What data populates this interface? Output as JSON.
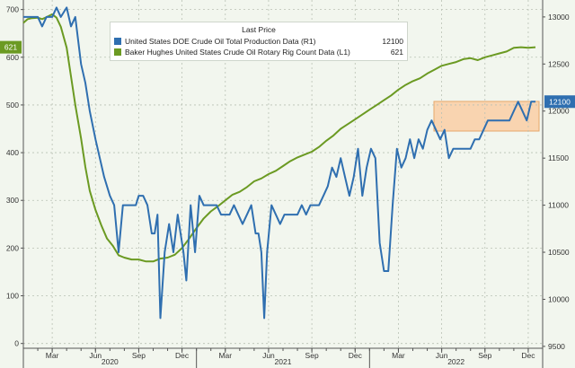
{
  "chart_data": {
    "type": "line",
    "x_axis": {
      "month_ticks": [
        "Mar",
        "Jun",
        "Sep",
        "Dec",
        "Mar",
        "Jun",
        "Sep",
        "Dec",
        "Mar",
        "Jun",
        "Sep",
        "Dec"
      ],
      "year_labels": [
        "2020",
        "2021",
        "2022"
      ],
      "range": [
        "2019-12",
        "2022-12"
      ]
    },
    "left_axis": {
      "label": "L1",
      "range": [
        -10,
        720
      ],
      "ticks": [
        0,
        100,
        200,
        300,
        400,
        500,
        600,
        700
      ]
    },
    "right_axis": {
      "label": "R1",
      "range": [
        9480,
        13180
      ],
      "ticks": [
        9500,
        10000,
        10500,
        11000,
        11500,
        12000,
        12500,
        13000
      ]
    },
    "legend": {
      "title": "Last Price",
      "entries": [
        {
          "name": "United States DOE Crude Oil Total Production Data",
          "axis_tag": "(R1)",
          "last": "12100",
          "color": "#2f6fb0"
        },
        {
          "name": "Baker Hughes United States Crude Oil Rotary Rig Count Data",
          "axis_tag": "(L1)",
          "last": "621",
          "color": "#6b9a22"
        }
      ]
    },
    "series": [
      {
        "name": "Baker Hughes United States Crude Oil Rotary Rig Count Data",
        "axis": "left",
        "color": "#6b9a22",
        "last_label": "621",
        "points": [
          [
            0.0,
            672
          ],
          [
            0.3,
            680
          ],
          [
            0.6,
            682
          ],
          [
            1.0,
            683
          ],
          [
            1.3,
            680
          ],
          [
            1.6,
            684
          ],
          [
            2.0,
            690
          ],
          [
            2.3,
            683
          ],
          [
            2.6,
            664
          ],
          [
            3.0,
            620
          ],
          [
            3.3,
            560
          ],
          [
            3.6,
            500
          ],
          [
            4.0,
            430
          ],
          [
            4.3,
            370
          ],
          [
            4.6,
            320
          ],
          [
            5.0,
            280
          ],
          [
            5.4,
            248
          ],
          [
            5.8,
            220
          ],
          [
            6.2,
            205
          ],
          [
            6.6,
            185
          ],
          [
            7.0,
            180
          ],
          [
            7.5,
            176
          ],
          [
            8.0,
            176
          ],
          [
            8.5,
            172
          ],
          [
            9.0,
            172
          ],
          [
            9.5,
            178
          ],
          [
            10.0,
            180
          ],
          [
            10.5,
            186
          ],
          [
            11.0,
            200
          ],
          [
            11.5,
            220
          ],
          [
            12.0,
            242
          ],
          [
            12.5,
            262
          ],
          [
            13.0,
            277
          ],
          [
            13.5,
            288
          ],
          [
            14.0,
            300
          ],
          [
            14.5,
            312
          ],
          [
            15.0,
            318
          ],
          [
            15.5,
            328
          ],
          [
            16.0,
            340
          ],
          [
            16.5,
            346
          ],
          [
            17.0,
            355
          ],
          [
            17.5,
            362
          ],
          [
            18.0,
            372
          ],
          [
            18.5,
            382
          ],
          [
            19.0,
            390
          ],
          [
            19.5,
            396
          ],
          [
            20.0,
            402
          ],
          [
            20.5,
            412
          ],
          [
            21.0,
            425
          ],
          [
            21.5,
            436
          ],
          [
            22.0,
            450
          ],
          [
            22.5,
            460
          ],
          [
            23.0,
            470
          ],
          [
            23.5,
            480
          ],
          [
            24.0,
            490
          ],
          [
            24.5,
            500
          ],
          [
            25.0,
            510
          ],
          [
            25.5,
            520
          ],
          [
            26.0,
            532
          ],
          [
            26.5,
            542
          ],
          [
            27.0,
            550
          ],
          [
            27.5,
            556
          ],
          [
            28.0,
            566
          ],
          [
            28.5,
            574
          ],
          [
            29.0,
            582
          ],
          [
            29.5,
            586
          ],
          [
            30.0,
            590
          ],
          [
            30.5,
            596
          ],
          [
            31.0,
            598
          ],
          [
            31.5,
            594
          ],
          [
            32.0,
            600
          ],
          [
            32.5,
            604
          ],
          [
            33.0,
            608
          ],
          [
            33.5,
            612
          ],
          [
            34.0,
            620
          ],
          [
            34.5,
            621
          ],
          [
            35.0,
            620
          ],
          [
            35.5,
            621
          ]
        ]
      },
      {
        "name": "United States DOE Crude Oil Total Production Data",
        "axis": "right",
        "color": "#2f6fb0",
        "last_label": "12100",
        "points": [
          [
            0.0,
            13000
          ],
          [
            0.5,
            13000
          ],
          [
            1.0,
            13000
          ],
          [
            1.3,
            12900
          ],
          [
            1.6,
            13000
          ],
          [
            2.0,
            13000
          ],
          [
            2.3,
            13100
          ],
          [
            2.6,
            13000
          ],
          [
            3.0,
            13100
          ],
          [
            3.3,
            12900
          ],
          [
            3.6,
            13000
          ],
          [
            4.0,
            12500
          ],
          [
            4.3,
            12300
          ],
          [
            4.6,
            12000
          ],
          [
            5.0,
            11700
          ],
          [
            5.3,
            11500
          ],
          [
            5.6,
            11300
          ],
          [
            6.0,
            11100
          ],
          [
            6.3,
            11000
          ],
          [
            6.6,
            10500
          ],
          [
            6.9,
            11000
          ],
          [
            7.2,
            11000
          ],
          [
            7.5,
            11000
          ],
          [
            7.8,
            11000
          ],
          [
            8.0,
            11100
          ],
          [
            8.3,
            11100
          ],
          [
            8.6,
            11000
          ],
          [
            8.9,
            10700
          ],
          [
            9.1,
            10700
          ],
          [
            9.3,
            10900
          ],
          [
            9.5,
            9800
          ],
          [
            9.8,
            10500
          ],
          [
            10.1,
            10800
          ],
          [
            10.4,
            10500
          ],
          [
            10.7,
            10900
          ],
          [
            10.9,
            10700
          ],
          [
            11.1,
            10500
          ],
          [
            11.3,
            10200
          ],
          [
            11.6,
            11000
          ],
          [
            11.9,
            10500
          ],
          [
            12.2,
            11100
          ],
          [
            12.5,
            11000
          ],
          [
            12.8,
            11000
          ],
          [
            13.1,
            11000
          ],
          [
            13.4,
            11000
          ],
          [
            13.7,
            10900
          ],
          [
            14.0,
            10900
          ],
          [
            14.3,
            10900
          ],
          [
            14.6,
            11000
          ],
          [
            14.9,
            10900
          ],
          [
            15.2,
            10800
          ],
          [
            15.5,
            10900
          ],
          [
            15.8,
            11000
          ],
          [
            16.1,
            10700
          ],
          [
            16.3,
            10700
          ],
          [
            16.5,
            10500
          ],
          [
            16.7,
            9800
          ],
          [
            16.9,
            10500
          ],
          [
            17.2,
            11000
          ],
          [
            17.5,
            10900
          ],
          [
            17.8,
            10800
          ],
          [
            18.1,
            10900
          ],
          [
            18.4,
            10900
          ],
          [
            18.7,
            10900
          ],
          [
            19.0,
            10900
          ],
          [
            19.3,
            11000
          ],
          [
            19.6,
            10900
          ],
          [
            19.9,
            11000
          ],
          [
            20.2,
            11000
          ],
          [
            20.5,
            11000
          ],
          [
            20.8,
            11100
          ],
          [
            21.1,
            11200
          ],
          [
            21.4,
            11400
          ],
          [
            21.7,
            11300
          ],
          [
            22.0,
            11500
          ],
          [
            22.3,
            11300
          ],
          [
            22.6,
            11100
          ],
          [
            22.9,
            11300
          ],
          [
            23.2,
            11600
          ],
          [
            23.5,
            11100
          ],
          [
            23.8,
            11400
          ],
          [
            24.1,
            11600
          ],
          [
            24.4,
            11500
          ],
          [
            24.7,
            10600
          ],
          [
            25.0,
            10300
          ],
          [
            25.3,
            10300
          ],
          [
            25.6,
            11000
          ],
          [
            25.9,
            11600
          ],
          [
            26.2,
            11400
          ],
          [
            26.5,
            11500
          ],
          [
            26.8,
            11700
          ],
          [
            27.1,
            11500
          ],
          [
            27.4,
            11700
          ],
          [
            27.7,
            11600
          ],
          [
            28.0,
            11800
          ],
          [
            28.3,
            11900
          ],
          [
            28.6,
            11800
          ],
          [
            28.9,
            11700
          ],
          [
            29.2,
            11800
          ],
          [
            29.5,
            11500
          ],
          [
            29.8,
            11600
          ],
          [
            30.1,
            11600
          ],
          [
            30.4,
            11600
          ],
          [
            30.7,
            11600
          ],
          [
            31.0,
            11600
          ],
          [
            31.3,
            11700
          ],
          [
            31.6,
            11700
          ],
          [
            31.9,
            11800
          ],
          [
            32.2,
            11900
          ],
          [
            32.5,
            11900
          ],
          [
            32.8,
            11900
          ],
          [
            33.1,
            11900
          ],
          [
            33.4,
            11900
          ],
          [
            33.7,
            11900
          ],
          [
            34.0,
            12000
          ],
          [
            34.3,
            12100
          ],
          [
            34.6,
            12000
          ],
          [
            34.9,
            11900
          ],
          [
            35.2,
            12100
          ],
          [
            35.5,
            12100
          ]
        ]
      }
    ]
  }
}
